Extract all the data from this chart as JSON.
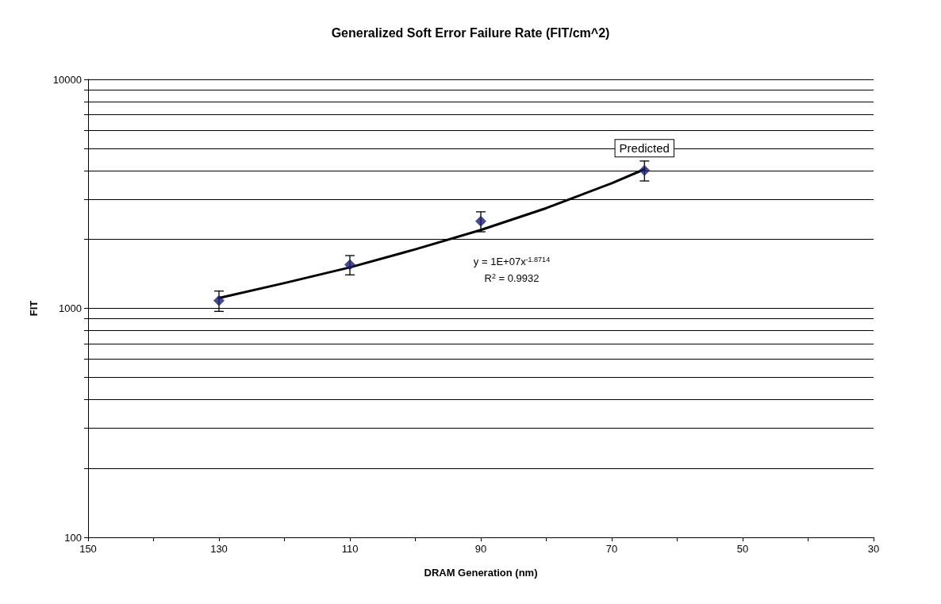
{
  "chart_data": {
    "type": "scatter",
    "title": "Generalized Soft Error Failure Rate (FIT/cm^2)",
    "xlabel": "DRAM Generation (nm)",
    "ylabel": "FIT",
    "xlim": [
      150,
      30
    ],
    "xticks": [
      150,
      {
        "value": 140,
        "label": null
      },
      130,
      {
        "value": 120,
        "label": null
      },
      110,
      {
        "value": 100,
        "label": null
      },
      90,
      {
        "value": 80,
        "label": null
      },
      70,
      {
        "value": 60,
        "label": null
      },
      50,
      {
        "value": 40,
        "label": null
      },
      30
    ],
    "ylim": [
      100,
      10000
    ],
    "yticks": [
      100,
      {
        "value": 200,
        "label": null
      },
      {
        "value": 300,
        "label": null
      },
      {
        "value": 400,
        "label": null
      },
      {
        "value": 500,
        "label": null
      },
      {
        "value": 600,
        "label": null
      },
      {
        "value": 700,
        "label": null
      },
      {
        "value": 800,
        "label": null
      },
      {
        "value": 900,
        "label": null
      },
      1000,
      {
        "value": 2000,
        "label": null
      },
      {
        "value": 3000,
        "label": null
      },
      {
        "value": 4000,
        "label": null
      },
      {
        "value": 5000,
        "label": null
      },
      {
        "value": 6000,
        "label": null
      },
      {
        "value": 7000,
        "label": null
      },
      {
        "value": 8000,
        "label": null
      },
      {
        "value": 9000,
        "label": null
      },
      10000
    ],
    "log": "y",
    "grid": "y",
    "series": [
      {
        "type": "scatter",
        "color": "#1c1f6e",
        "marker": "diamond",
        "x": [
          130,
          110,
          90,
          65
        ],
        "values": [
          1080,
          1550,
          2400,
          4000
        ],
        "errors": [
          110,
          150,
          240,
          400
        ]
      },
      {
        "type": "line",
        "color": "#000000",
        "marker": "none",
        "line_style": "solid",
        "x": [
          130,
          120,
          110,
          100,
          90,
          80,
          70,
          65
        ],
        "values": [
          1110,
          1290,
          1510,
          1810,
          2200,
          2740,
          3520,
          4050
        ]
      }
    ],
    "annotations": [
      "y = 1E+07x$^{-1.8714}$",
      "R$^{2}$ = 0.9932",
      {
        "text": "Predicted",
        "x": 65,
        "y": 4000
      }
    ]
  }
}
